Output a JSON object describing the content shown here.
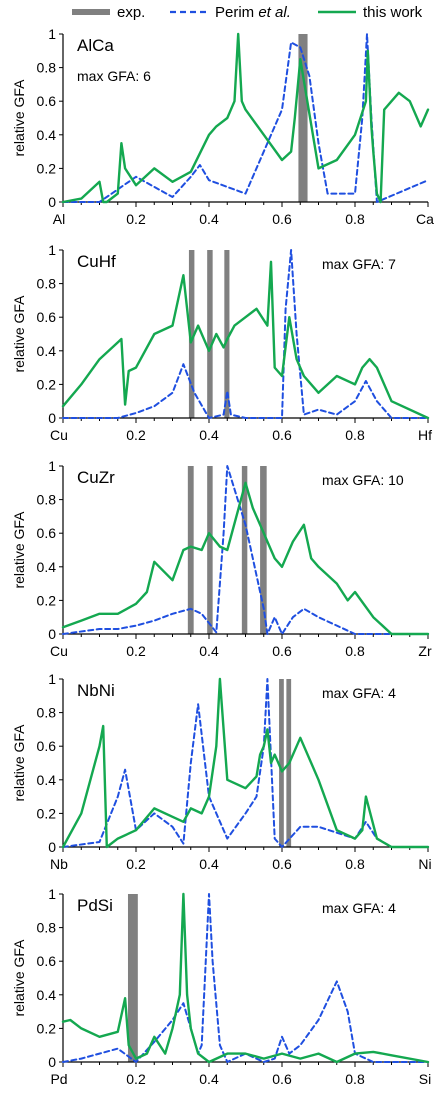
{
  "legend": {
    "items": [
      {
        "key": "exp",
        "label": "exp.",
        "color": "#808080",
        "style": "bar"
      },
      {
        "key": "perim",
        "label_main": "Perim ",
        "label_italic": "et al.",
        "color": "#1f4fe0",
        "style": "dashed"
      },
      {
        "key": "this",
        "label": "this work",
        "color": "#14a850",
        "style": "solid"
      }
    ]
  },
  "chart_data": [
    {
      "type": "line",
      "title": "AlCa",
      "max_gfa_label": "max GFA: 6",
      "ylabel": "relative GFA",
      "xlim": [
        0,
        1
      ],
      "ylim": [
        0,
        1
      ],
      "x_end_labels": [
        "Al",
        "Ca"
      ],
      "xticks": [
        "0.2",
        "0.4",
        "0.6",
        "0.8"
      ],
      "yticks": [
        "0",
        "0.2",
        "0.4",
        "0.6",
        "0.8",
        "1"
      ],
      "exp_bars": [
        [
          0.645,
          0.67
        ]
      ],
      "series": [
        {
          "key": "perim",
          "x": [
            0,
            0.1,
            0.2,
            0.3,
            0.35,
            0.375,
            0.4,
            0.5,
            0.6,
            0.625,
            0.65,
            0.675,
            0.7,
            0.725,
            0.75,
            0.8,
            0.82,
            0.833,
            0.845,
            0.86,
            1.0
          ],
          "y": [
            0,
            0,
            0.15,
            0.03,
            0.15,
            0.22,
            0.13,
            0.05,
            0.55,
            0.95,
            0.92,
            0.75,
            0.35,
            0.05,
            0.05,
            0.05,
            0.5,
            1.0,
            0.5,
            0.0,
            0.13
          ]
        },
        {
          "key": "this",
          "x": [
            0,
            0.05,
            0.1,
            0.11,
            0.12,
            0.15,
            0.16,
            0.17,
            0.2,
            0.25,
            0.3,
            0.35,
            0.4,
            0.42,
            0.45,
            0.47,
            0.48,
            0.49,
            0.5,
            0.55,
            0.6,
            0.625,
            0.635,
            0.65,
            0.7,
            0.75,
            0.8,
            0.83,
            0.835,
            0.845,
            0.85,
            0.86,
            0.87,
            0.88,
            0.9,
            0.92,
            0.95,
            0.98,
            1.0
          ],
          "y": [
            0,
            0.02,
            0.12,
            0.0,
            0.0,
            0.05,
            0.35,
            0.2,
            0.1,
            0.2,
            0.12,
            0.18,
            0.4,
            0.45,
            0.5,
            0.6,
            1.0,
            0.6,
            0.55,
            0.4,
            0.25,
            0.3,
            0.5,
            0.85,
            0.2,
            0.25,
            0.4,
            0.6,
            0.9,
            0.45,
            0.3,
            0.05,
            0.0,
            0.55,
            0.6,
            0.65,
            0.6,
            0.45,
            0.55
          ]
        }
      ]
    },
    {
      "type": "line",
      "title": "CuHf",
      "max_gfa_label": "max GFA: 7",
      "ylabel": "relative GFA",
      "xlim": [
        0,
        1
      ],
      "ylim": [
        0,
        1
      ],
      "x_end_labels": [
        "Cu",
        "Hf"
      ],
      "xticks": [
        "0.2",
        "0.4",
        "0.6",
        "0.8"
      ],
      "yticks": [
        "0",
        "0.2",
        "0.4",
        "0.6",
        "0.8",
        "1"
      ],
      "exp_bars": [
        [
          0.345,
          0.36
        ],
        [
          0.395,
          0.41
        ],
        [
          0.442,
          0.456
        ]
      ],
      "series": [
        {
          "key": "perim",
          "x": [
            0,
            0.15,
            0.2,
            0.25,
            0.3,
            0.33,
            0.36,
            0.4,
            0.44,
            0.45,
            0.46,
            0.5,
            0.55,
            0.6,
            0.61,
            0.625,
            0.64,
            0.66,
            0.7,
            0.75,
            0.8,
            0.83,
            0.86,
            0.9,
            1.0
          ],
          "y": [
            0,
            0,
            0.03,
            0.07,
            0.15,
            0.32,
            0.15,
            0.0,
            0.02,
            0.16,
            0.02,
            0.0,
            0.0,
            0.0,
            0.65,
            1.0,
            0.5,
            0.02,
            0.05,
            0.02,
            0.1,
            0.22,
            0.1,
            0.0,
            0.0
          ]
        },
        {
          "key": "this",
          "x": [
            0,
            0.05,
            0.1,
            0.15,
            0.16,
            0.17,
            0.18,
            0.2,
            0.25,
            0.3,
            0.33,
            0.35,
            0.37,
            0.4,
            0.42,
            0.44,
            0.45,
            0.47,
            0.5,
            0.53,
            0.56,
            0.57,
            0.58,
            0.6,
            0.62,
            0.64,
            0.66,
            0.7,
            0.75,
            0.8,
            0.82,
            0.84,
            0.86,
            0.9,
            1.0
          ],
          "y": [
            0.07,
            0.2,
            0.35,
            0.45,
            0.47,
            0.08,
            0.28,
            0.3,
            0.5,
            0.55,
            0.85,
            0.45,
            0.55,
            0.4,
            0.5,
            0.42,
            0.47,
            0.55,
            0.6,
            0.65,
            0.55,
            0.93,
            0.3,
            0.25,
            0.6,
            0.35,
            0.25,
            0.15,
            0.25,
            0.2,
            0.3,
            0.35,
            0.3,
            0.1,
            0.0
          ]
        }
      ]
    },
    {
      "type": "line",
      "title": "CuZr",
      "max_gfa_label": "max GFA: 10",
      "ylabel": "relative GFA",
      "xlim": [
        0,
        1
      ],
      "ylim": [
        0,
        1
      ],
      "x_end_labels": [
        "Cu",
        "Zr"
      ],
      "xticks": [
        "0.2",
        "0.4",
        "0.6",
        "0.8"
      ],
      "yticks": [
        "0",
        "0.2",
        "0.4",
        "0.6",
        "0.8",
        "1"
      ],
      "exp_bars": [
        [
          0.342,
          0.358
        ],
        [
          0.395,
          0.41
        ],
        [
          0.49,
          0.505
        ],
        [
          0.54,
          0.558
        ]
      ],
      "series": [
        {
          "key": "perim",
          "x": [
            0,
            0.1,
            0.15,
            0.2,
            0.25,
            0.3,
            0.35,
            0.38,
            0.42,
            0.44,
            0.45,
            0.5,
            0.55,
            0.56,
            0.58,
            0.6,
            0.63,
            0.66,
            0.7,
            0.8,
            0.9,
            1.0
          ],
          "y": [
            0,
            0.03,
            0.03,
            0.05,
            0.08,
            0.12,
            0.15,
            0.12,
            0.01,
            0.6,
            1.0,
            0.65,
            0.15,
            0.0,
            0.1,
            0.0,
            0.1,
            0.15,
            0.1,
            0.0,
            0.0,
            0.0
          ]
        },
        {
          "key": "this",
          "x": [
            0,
            0.05,
            0.1,
            0.15,
            0.2,
            0.23,
            0.25,
            0.3,
            0.33,
            0.35,
            0.38,
            0.4,
            0.43,
            0.45,
            0.5,
            0.52,
            0.55,
            0.56,
            0.58,
            0.6,
            0.63,
            0.66,
            0.68,
            0.7,
            0.75,
            0.78,
            0.8,
            0.85,
            0.9,
            1.0
          ],
          "y": [
            0.04,
            0.08,
            0.12,
            0.12,
            0.18,
            0.25,
            0.43,
            0.32,
            0.5,
            0.52,
            0.5,
            0.6,
            0.52,
            0.5,
            0.9,
            0.75,
            0.6,
            0.55,
            0.45,
            0.4,
            0.55,
            0.65,
            0.45,
            0.4,
            0.3,
            0.2,
            0.25,
            0.1,
            0.0,
            0.0
          ]
        }
      ]
    },
    {
      "type": "line",
      "title": "NbNi",
      "max_gfa_label": "max GFA: 4",
      "ylabel": "relative GFA",
      "xlim": [
        0,
        1
      ],
      "ylim": [
        0,
        1
      ],
      "x_end_labels": [
        "Nb",
        "Ni"
      ],
      "xticks": [
        "0.2",
        "0.4",
        "0.6",
        "0.8"
      ],
      "yticks": [
        "0",
        "0.2",
        "0.4",
        "0.6",
        "0.8",
        "1"
      ],
      "exp_bars": [
        [
          0.592,
          0.605
        ],
        [
          0.612,
          0.625
        ]
      ],
      "series": [
        {
          "key": "perim",
          "x": [
            0,
            0.1,
            0.15,
            0.17,
            0.2,
            0.25,
            0.3,
            0.33,
            0.35,
            0.37,
            0.4,
            0.45,
            0.5,
            0.53,
            0.55,
            0.56,
            0.58,
            0.6,
            0.65,
            0.7,
            0.8,
            0.83,
            0.86,
            0.9,
            1.0
          ],
          "y": [
            0,
            0.03,
            0.3,
            0.46,
            0.1,
            0.2,
            0.12,
            0.02,
            0.5,
            0.85,
            0.3,
            0.05,
            0.2,
            0.3,
            0.6,
            1.0,
            0.05,
            0.0,
            0.12,
            0.12,
            0.05,
            0.15,
            0.05,
            0.0,
            0.0
          ]
        },
        {
          "key": "this",
          "x": [
            0,
            0.05,
            0.1,
            0.11,
            0.12,
            0.15,
            0.2,
            0.25,
            0.3,
            0.33,
            0.35,
            0.38,
            0.4,
            0.42,
            0.43,
            0.45,
            0.5,
            0.53,
            0.54,
            0.55,
            0.56,
            0.57,
            0.58,
            0.6,
            0.62,
            0.65,
            0.7,
            0.75,
            0.8,
            0.82,
            0.83,
            0.86,
            0.9,
            1.0
          ],
          "y": [
            0,
            0.2,
            0.6,
            0.72,
            0.0,
            0.05,
            0.1,
            0.23,
            0.18,
            0.15,
            0.23,
            0.2,
            0.3,
            0.6,
            1.0,
            0.4,
            0.35,
            0.42,
            0.55,
            0.6,
            0.7,
            0.5,
            0.55,
            0.45,
            0.5,
            0.65,
            0.4,
            0.1,
            0.05,
            0.1,
            0.3,
            0.05,
            0.0,
            0.0
          ]
        }
      ]
    },
    {
      "type": "line",
      "title": "PdSi",
      "max_gfa_label": "max GFA: 4",
      "ylabel": "relative GFA",
      "xlim": [
        0,
        1
      ],
      "ylim": [
        0,
        1
      ],
      "x_end_labels": [
        "Pd",
        "Si"
      ],
      "xticks": [
        "0.2",
        "0.4",
        "0.6",
        "0.8"
      ],
      "yticks": [
        "0",
        "0.2",
        "0.4",
        "0.6",
        "0.8",
        "1"
      ],
      "exp_bars": [
        [
          0.178,
          0.205
        ]
      ],
      "series": [
        {
          "key": "perim",
          "x": [
            0,
            0.05,
            0.1,
            0.15,
            0.2,
            0.25,
            0.3,
            0.33,
            0.35,
            0.37,
            0.38,
            0.4,
            0.41,
            0.43,
            0.45,
            0.5,
            0.55,
            0.58,
            0.6,
            0.62,
            0.65,
            0.7,
            0.75,
            0.78,
            0.8,
            0.85,
            0.9,
            1.0
          ],
          "y": [
            0,
            0.02,
            0.05,
            0.08,
            0.0,
            0.12,
            0.25,
            0.35,
            0.2,
            0.05,
            0.1,
            1.0,
            0.6,
            0.1,
            0.0,
            0.05,
            0.0,
            0.02,
            0.15,
            0.05,
            0.1,
            0.25,
            0.48,
            0.3,
            0.05,
            0.0,
            0.0,
            0.0
          ]
        },
        {
          "key": "this",
          "x": [
            0,
            0.02,
            0.05,
            0.1,
            0.15,
            0.17,
            0.18,
            0.2,
            0.23,
            0.25,
            0.28,
            0.3,
            0.32,
            0.33,
            0.34,
            0.35,
            0.37,
            0.4,
            0.45,
            0.5,
            0.55,
            0.6,
            0.65,
            0.7,
            0.75,
            0.8,
            0.85,
            0.9,
            1.0
          ],
          "y": [
            0.24,
            0.25,
            0.2,
            0.15,
            0.18,
            0.38,
            0.1,
            0.02,
            0.05,
            0.15,
            0.05,
            0.2,
            0.4,
            1.0,
            0.4,
            0.2,
            0.05,
            0.0,
            0.05,
            0.05,
            0.02,
            0.05,
            0.02,
            0.05,
            0.0,
            0.05,
            0.06,
            0.04,
            0.0
          ]
        }
      ]
    }
  ]
}
